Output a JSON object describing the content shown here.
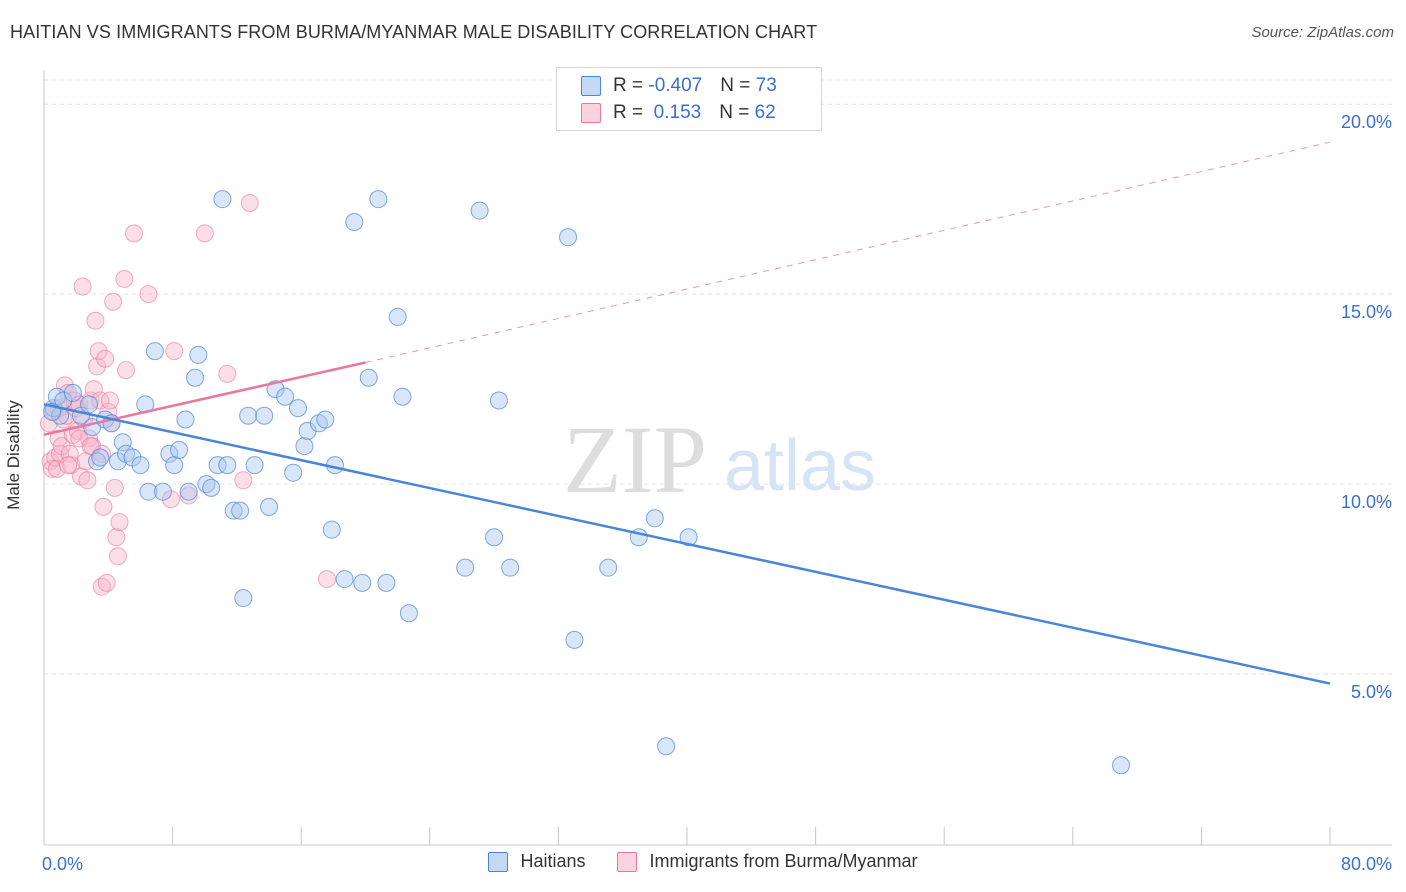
{
  "title": "HAITIAN VS IMMIGRANTS FROM BURMA/MYANMAR MALE DISABILITY CORRELATION CHART",
  "source": "Source: ZipAtlas.com",
  "watermark": {
    "zip": "ZIP",
    "atlas": "atlas"
  },
  "colors": {
    "blue": "#4a86d6",
    "pink": "#e9789c",
    "blue_fill": "#aac8f0",
    "pink_fill": "#f6b7cb",
    "axis_label": "#3a6fd0"
  },
  "legend_top": {
    "rows": [
      {
        "r_label": "R = ",
        "r_value": "-0.407",
        "n_label": "N = ",
        "n_value": "73"
      },
      {
        "r_label": "R = ",
        "r_value": " 0.153",
        "n_label": "N = ",
        "n_value": "62"
      }
    ]
  },
  "chart_data": {
    "type": "scatter",
    "title": "HAITIAN VS IMMIGRANTS FROM BURMA/MYANMAR MALE DISABILITY CORRELATION CHART",
    "xlabel": "",
    "ylabel": "Male Disability",
    "xlim": [
      0,
      80
    ],
    "ylim": [
      0.5,
      20.9
    ],
    "x_tick_labels": [
      "0.0%",
      "80.0%"
    ],
    "y_ticks": [
      5,
      10,
      15,
      20
    ],
    "y_tick_labels": [
      "5.0%",
      "10.0%",
      "15.0%",
      "20.0%"
    ],
    "series": [
      {
        "name": "Haitians",
        "r": -0.407,
        "n": 73,
        "trend": {
          "x1": 0,
          "y1": 12.1,
          "x2": 80,
          "y2": 4.75
        },
        "points": [
          [
            0.6,
            12.0
          ],
          [
            0.8,
            12.3
          ],
          [
            1.0,
            11.8
          ],
          [
            1.2,
            12.2
          ],
          [
            1.8,
            12.4
          ],
          [
            2.3,
            11.8
          ],
          [
            2.8,
            12.1
          ],
          [
            3.0,
            11.5
          ],
          [
            3.3,
            10.6
          ],
          [
            3.5,
            10.7
          ],
          [
            3.8,
            11.7
          ],
          [
            4.2,
            11.6
          ],
          [
            4.6,
            10.6
          ],
          [
            4.9,
            11.1
          ],
          [
            5.1,
            10.8
          ],
          [
            5.5,
            10.7
          ],
          [
            6.0,
            10.5
          ],
          [
            6.3,
            12.1
          ],
          [
            6.5,
            9.8
          ],
          [
            6.9,
            13.5
          ],
          [
            7.4,
            9.8
          ],
          [
            7.8,
            10.8
          ],
          [
            8.1,
            10.5
          ],
          [
            8.4,
            10.9
          ],
          [
            8.8,
            11.7
          ],
          [
            9.0,
            9.8
          ],
          [
            9.4,
            12.8
          ],
          [
            9.6,
            13.4
          ],
          [
            10.1,
            10.0
          ],
          [
            10.4,
            9.9
          ],
          [
            10.8,
            10.5
          ],
          [
            11.1,
            17.5
          ],
          [
            11.4,
            10.5
          ],
          [
            11.8,
            9.3
          ],
          [
            12.2,
            9.3
          ],
          [
            12.4,
            7.0
          ],
          [
            12.7,
            11.8
          ],
          [
            13.1,
            10.5
          ],
          [
            13.7,
            11.8
          ],
          [
            14.0,
            9.4
          ],
          [
            14.4,
            12.5
          ],
          [
            15.0,
            12.3
          ],
          [
            15.5,
            10.3
          ],
          [
            15.8,
            12.0
          ],
          [
            16.2,
            11.0
          ],
          [
            16.4,
            11.4
          ],
          [
            17.1,
            11.6
          ],
          [
            17.5,
            11.7
          ],
          [
            17.9,
            8.8
          ],
          [
            18.1,
            10.5
          ],
          [
            18.7,
            7.5
          ],
          [
            19.3,
            16.9
          ],
          [
            19.8,
            7.4
          ],
          [
            20.2,
            12.8
          ],
          [
            20.8,
            17.5
          ],
          [
            21.3,
            7.4
          ],
          [
            22.0,
            14.4
          ],
          [
            22.3,
            12.3
          ],
          [
            22.7,
            6.6
          ],
          [
            26.2,
            7.8
          ],
          [
            27.1,
            17.2
          ],
          [
            28.0,
            8.6
          ],
          [
            28.3,
            12.2
          ],
          [
            29.0,
            7.8
          ],
          [
            32.6,
            16.5
          ],
          [
            33.0,
            5.9
          ],
          [
            35.1,
            7.8
          ],
          [
            37.0,
            8.6
          ],
          [
            38.0,
            9.1
          ],
          [
            38.7,
            3.1
          ],
          [
            40.1,
            8.6
          ],
          [
            67.0,
            2.6
          ],
          [
            0.5,
            11.9
          ]
        ]
      },
      {
        "name": "Immigrants from Burma/Myanmar",
        "r": 0.153,
        "n": 62,
        "trend": {
          "x1": 0,
          "y1": 11.3,
          "x2": 20,
          "y2": 13.2
        },
        "trend_ext": {
          "x1": 20,
          "y1": 13.2,
          "x2": 80,
          "y2": 19.0
        },
        "points": [
          [
            0.3,
            11.6
          ],
          [
            0.4,
            10.6
          ],
          [
            0.5,
            10.4
          ],
          [
            0.6,
            11.9
          ],
          [
            0.7,
            10.7
          ],
          [
            0.8,
            10.4
          ],
          [
            0.9,
            11.2
          ],
          [
            1.0,
            10.8
          ],
          [
            1.1,
            11.0
          ],
          [
            1.2,
            11.7
          ],
          [
            1.3,
            12.6
          ],
          [
            1.4,
            11.8
          ],
          [
            1.5,
            12.4
          ],
          [
            1.6,
            10.8
          ],
          [
            1.7,
            10.5
          ],
          [
            1.8,
            11.3
          ],
          [
            1.9,
            12.2
          ],
          [
            2.0,
            12.0
          ],
          [
            2.1,
            11.4
          ],
          [
            2.2,
            12.1
          ],
          [
            2.3,
            10.2
          ],
          [
            2.4,
            15.2
          ],
          [
            2.5,
            11.7
          ],
          [
            2.6,
            10.6
          ],
          [
            2.7,
            10.1
          ],
          [
            2.8,
            11.2
          ],
          [
            2.9,
            12.2
          ],
          [
            3.0,
            11.0
          ],
          [
            3.1,
            12.5
          ],
          [
            3.2,
            14.3
          ],
          [
            3.3,
            13.1
          ],
          [
            3.4,
            13.5
          ],
          [
            3.5,
            12.2
          ],
          [
            3.6,
            7.3
          ],
          [
            3.7,
            9.4
          ],
          [
            3.8,
            13.3
          ],
          [
            3.9,
            7.4
          ],
          [
            4.0,
            11.9
          ],
          [
            4.1,
            12.2
          ],
          [
            4.2,
            11.6
          ],
          [
            4.3,
            14.8
          ],
          [
            4.4,
            9.9
          ],
          [
            4.5,
            8.6
          ],
          [
            4.6,
            8.1
          ],
          [
            4.7,
            9.0
          ],
          [
            5.0,
            15.4
          ],
          [
            5.1,
            13.0
          ],
          [
            5.6,
            16.6
          ],
          [
            6.5,
            15.0
          ],
          [
            7.9,
            9.6
          ],
          [
            8.1,
            13.5
          ],
          [
            9.0,
            9.7
          ],
          [
            10.0,
            16.6
          ],
          [
            11.4,
            12.9
          ],
          [
            12.4,
            10.1
          ],
          [
            12.8,
            17.4
          ],
          [
            17.6,
            7.5
          ],
          [
            2.2,
            11.2
          ],
          [
            1.5,
            10.5
          ],
          [
            0.9,
            12.0
          ],
          [
            3.6,
            10.8
          ],
          [
            2.9,
            11.0
          ]
        ]
      }
    ]
  },
  "legend_bottom": {
    "items": [
      {
        "label": "Haitians"
      },
      {
        "label": "Immigrants from Burma/Myanmar"
      }
    ]
  }
}
